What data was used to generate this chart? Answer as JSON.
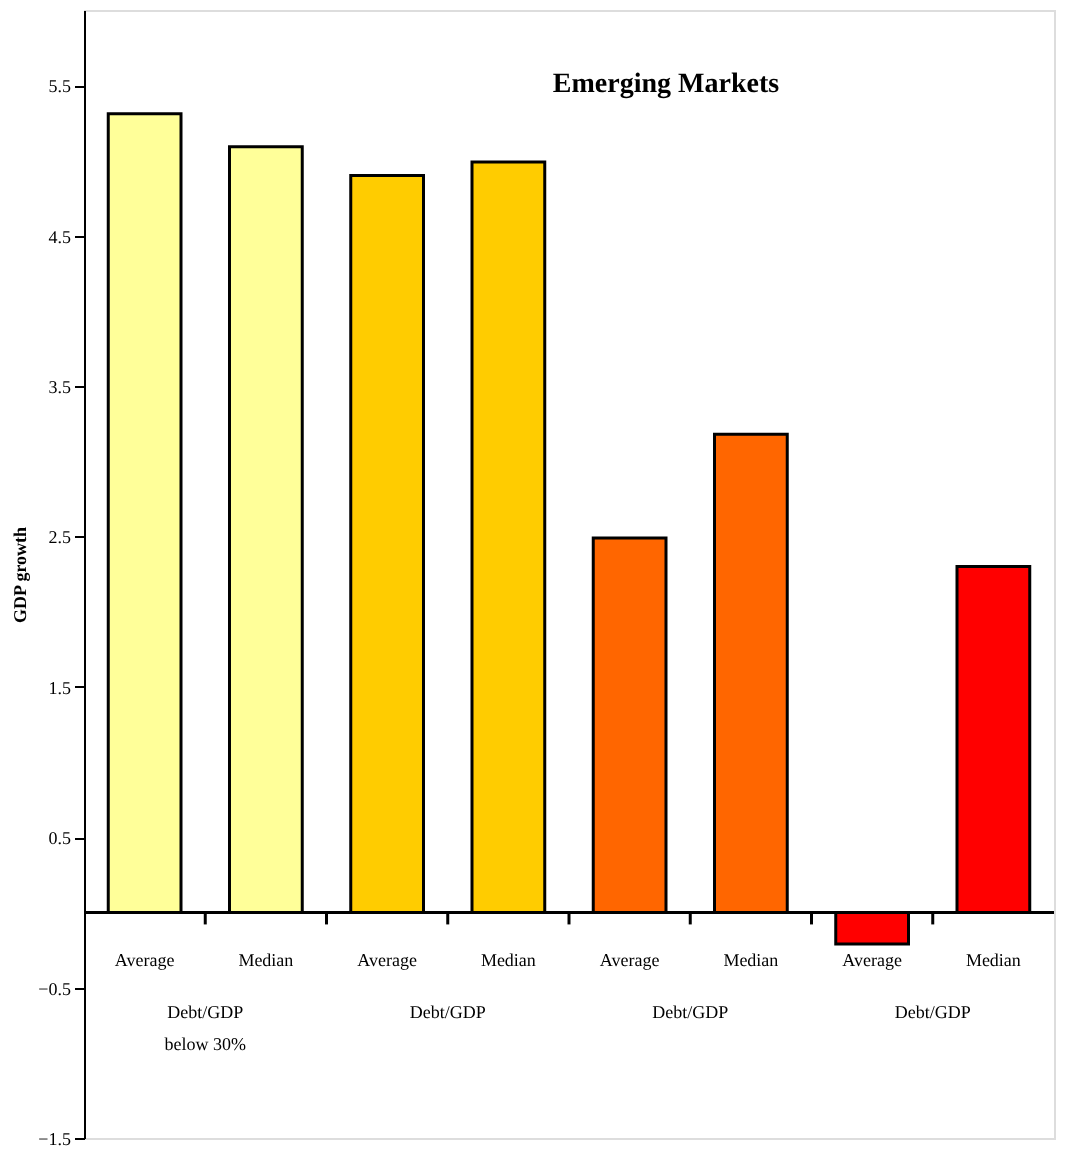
{
  "chart_data": {
    "type": "bar",
    "title": "Emerging Markets",
    "ylabel": "GDP growth",
    "categories": [
      "Average",
      "Median",
      "Average",
      "Median",
      "Average",
      "Median",
      "Average",
      "Median"
    ],
    "values": [
      5.31,
      5.09,
      4.9,
      4.99,
      2.49,
      3.18,
      -0.21,
      2.3
    ],
    "colors": [
      "#ffff99",
      "#ffff99",
      "#ffcc00",
      "#ffcc00",
      "#ff6600",
      "#ff6600",
      "#ff0000",
      "#ff0000"
    ],
    "annotations": [
      "Debt/GDP\nbelow 30%",
      "Debt/GDP",
      "Debt/GDP",
      "Debt/GDP"
    ],
    "ylim": [
      -1.5,
      6
    ],
    "yticks": [
      -1.5,
      -0.5,
      0.5,
      1.5,
      2.5,
      3.5,
      4.5,
      5.5
    ],
    "grid": false
  }
}
